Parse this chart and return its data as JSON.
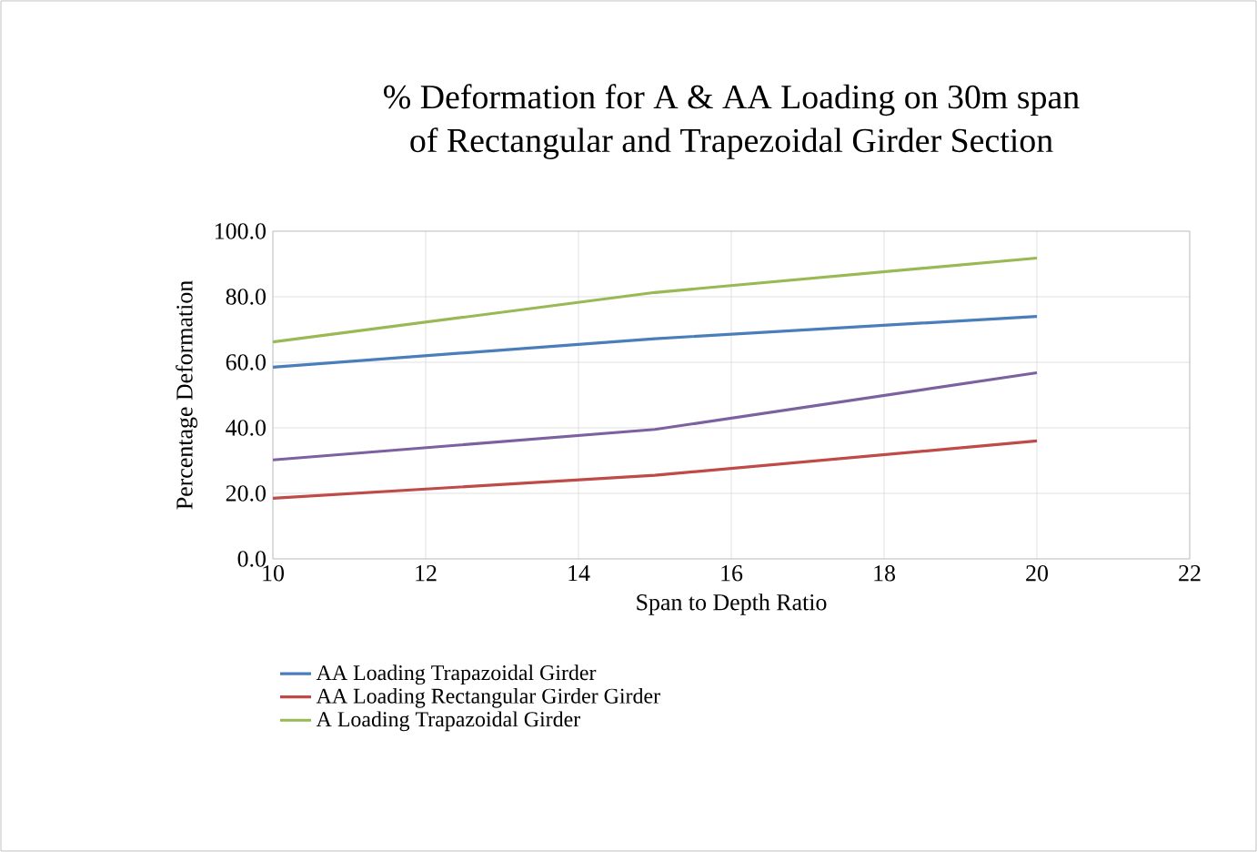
{
  "chart_data": {
    "type": "line",
    "title": "% Deformation for A & AA Loading on 30m span\nof Rectangular and Trapezoidal Girder Section",
    "xlabel": "Span to Depth Ratio",
    "ylabel": "Percentage Deformation",
    "x": [
      10,
      15,
      20
    ],
    "series": [
      {
        "name": "AA Loading Trapazoidal Girder",
        "color": "#4a7ebb",
        "values": [
          58.5,
          67.2,
          74.0
        ]
      },
      {
        "name": "AA Loading Rectangular Girder Girder",
        "color": "#be4b48",
        "values": [
          18.5,
          25.5,
          36.0
        ]
      },
      {
        "name": "A Loading Trapazoidal Girder",
        "color": "#98b954",
        "values": [
          66.2,
          81.3,
          91.8
        ]
      },
      {
        "color": "#7d60a0",
        "values": [
          30.2,
          39.5,
          56.8
        ]
      }
    ],
    "xlim": [
      10,
      22
    ],
    "xticks": [
      10,
      12,
      14,
      16,
      18,
      20,
      22
    ],
    "ylim": [
      0,
      100
    ],
    "yticks": [
      {
        "value": 0,
        "label": "0.0"
      },
      {
        "value": 20,
        "label": "20.0"
      },
      {
        "value": 40,
        "label": "40.0"
      },
      {
        "value": 60,
        "label": "60.0"
      },
      {
        "value": 80,
        "label": "80.0"
      },
      {
        "value": 100,
        "label": "100.0"
      }
    ],
    "grid": true,
    "legend": "bottom",
    "marker": "none",
    "line_style": "solid"
  }
}
